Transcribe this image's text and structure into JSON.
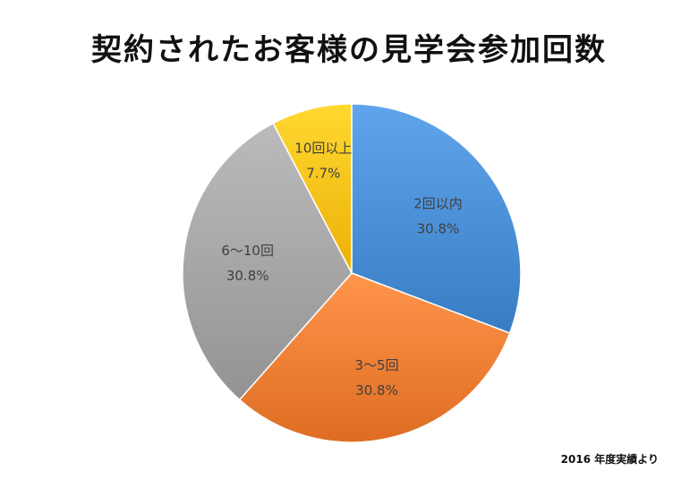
{
  "chart_data": {
    "type": "pie",
    "title": "契約されたお客様の見学会参加回数",
    "slices": [
      {
        "label": "2回以内",
        "value": 30.8,
        "value_label": "30.8%",
        "color": "#4a8fd6"
      },
      {
        "label": "3〜5回",
        "value": 30.8,
        "value_label": "30.8%",
        "color": "#f07f35"
      },
      {
        "label": "6〜10回",
        "value": 30.8,
        "value_label": "30.8%",
        "color": "#a5a5a5"
      },
      {
        "label": "10回以上",
        "value": 7.7,
        "value_label": "7.7%",
        "color": "#ffc21a"
      }
    ],
    "legend": "none"
  },
  "footnote": "2016 年度実績より"
}
